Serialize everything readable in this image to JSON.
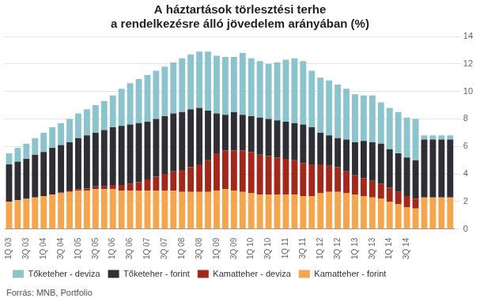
{
  "chart_data": {
    "type": "bar",
    "title": [
      "A háztartások törlesztési terhe",
      "a rendelkezésre álló jövedelem arányában (%)"
    ],
    "source": "Forrás: MNB, Portfolio",
    "stacked": true,
    "grid": true,
    "legend": "bottom",
    "categories": [
      "1Q 03",
      null,
      "3Q 03",
      null,
      "1Q 04",
      null,
      "3Q 04",
      null,
      "1Q 05",
      null,
      "3Q 05",
      null,
      "1Q 06",
      null,
      "3Q 06",
      null,
      "1Q 07",
      null,
      "3Q 07",
      null,
      "1Q 08",
      null,
      "3Q 08",
      null,
      "1Q 09",
      null,
      "3Q 09",
      null,
      "1Q 10",
      null,
      "3Q 10",
      null,
      "1Q 11",
      null,
      "3Q 11",
      null,
      "1Q 12",
      null,
      "3Q 12",
      null,
      "1Q 13",
      null,
      "3Q 13",
      null,
      "1Q 14",
      null,
      "3Q 14",
      null,
      null,
      null,
      null,
      null
    ],
    "ylim": [
      0,
      14
    ],
    "yticks": [
      0,
      2,
      4,
      6,
      8,
      10,
      12,
      14
    ],
    "series": [
      {
        "name": "Tőketeher - deviza",
        "color": "#8cc4cd",
        "values": [
          0.8,
          1.0,
          1.1,
          1.2,
          1.4,
          1.5,
          1.6,
          1.7,
          1.8,
          1.9,
          2.0,
          2.1,
          2.3,
          2.7,
          3.0,
          3.2,
          3.4,
          3.5,
          3.6,
          3.7,
          3.9,
          4.0,
          4.1,
          4.3,
          4.2,
          4.2,
          4.0,
          4.5,
          4.2,
          4.1,
          4.0,
          4.2,
          4.5,
          4.7,
          4.6,
          4.1,
          4.0,
          4.0,
          3.9,
          3.7,
          3.5,
          3.3,
          3.4,
          3.0,
          3.0,
          3.0,
          2.9,
          3.0,
          0.3,
          0.3,
          0.3,
          0.3
        ]
      },
      {
        "name": "Tőketeher - forint",
        "color": "#2e2e34",
        "values": [
          2.7,
          2.8,
          2.9,
          3.1,
          3.2,
          3.4,
          3.45,
          3.5,
          3.7,
          3.85,
          3.9,
          4.1,
          4.2,
          4.3,
          4.3,
          4.3,
          4.2,
          4.2,
          4.2,
          4.2,
          4.2,
          4.2,
          4.1,
          3.6,
          2.9,
          2.6,
          2.8,
          2.6,
          2.6,
          2.7,
          2.7,
          2.7,
          2.7,
          2.7,
          2.8,
          2.7,
          2.3,
          2.2,
          2.1,
          2.3,
          2.4,
          2.7,
          2.8,
          2.9,
          2.8,
          2.8,
          2.8,
          2.8,
          4.2,
          4.2,
          4.2,
          4.2
        ]
      },
      {
        "name": "Kamatteher - deviza",
        "color": "#a3281c",
        "values": [
          0,
          0,
          0,
          0,
          0,
          0,
          0.05,
          0.1,
          0.1,
          0.15,
          0.2,
          0.2,
          0.3,
          0.4,
          0.5,
          0.6,
          0.8,
          1.0,
          1.2,
          1.4,
          1.6,
          1.8,
          2.0,
          2.3,
          2.7,
          2.8,
          2.9,
          3.0,
          3.0,
          2.9,
          2.8,
          2.7,
          2.6,
          2.5,
          2.4,
          2.3,
          2.1,
          1.9,
          1.8,
          1.6,
          1.4,
          1.3,
          1.2,
          1.1,
          1.0,
          0.9,
          0.8,
          0.7,
          0,
          0,
          0,
          0
        ]
      },
      {
        "name": "Kamatteher - forint",
        "color": "#f5a54b",
        "values": [
          2.0,
          2.1,
          2.2,
          2.3,
          2.4,
          2.5,
          2.6,
          2.7,
          2.8,
          2.8,
          2.9,
          2.9,
          2.9,
          2.8,
          2.8,
          2.8,
          2.8,
          2.8,
          2.8,
          2.8,
          2.7,
          2.7,
          2.7,
          2.7,
          2.8,
          2.9,
          2.8,
          2.7,
          2.6,
          2.5,
          2.5,
          2.5,
          2.5,
          2.5,
          2.4,
          2.4,
          2.6,
          2.7,
          2.7,
          2.6,
          2.5,
          2.4,
          2.3,
          2.2,
          2.0,
          1.8,
          1.6,
          1.5,
          2.3,
          2.3,
          2.3,
          2.3
        ]
      }
    ]
  }
}
